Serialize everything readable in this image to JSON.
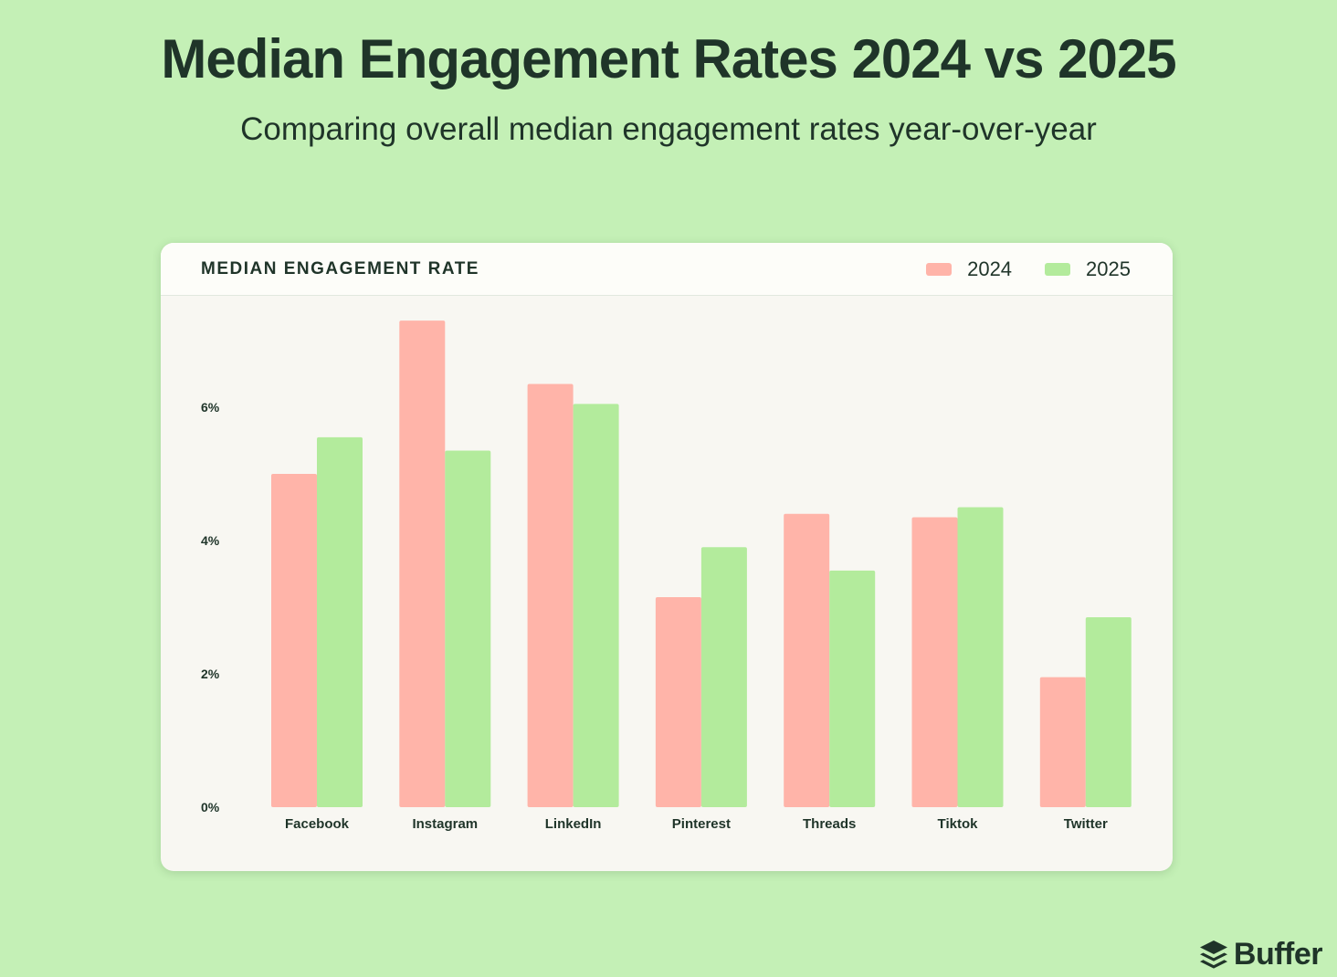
{
  "colors": {
    "background": "#c4f0b6",
    "card": "#f8f7f2",
    "card_header": "#fdfdf9",
    "series_2024": "#ffb4a9",
    "series_2025": "#b3eb9c",
    "text": "#1f3429"
  },
  "header": {
    "title": "Median Engagement Rates 2024 vs 2025",
    "subtitle": "Comparing overall median engagement rates year-over-year"
  },
  "card": {
    "title": "MEDIAN ENGAGEMENT RATE"
  },
  "brand": {
    "name": "Buffer",
    "icon": "buffer-stack-icon"
  },
  "chart_data": {
    "type": "bar",
    "title": "MEDIAN ENGAGEMENT RATE",
    "categories": [
      "Facebook",
      "Instagram",
      "LinkedIn",
      "Pinterest",
      "Threads",
      "Tiktok",
      "Twitter"
    ],
    "series": [
      {
        "name": "2024",
        "values": [
          5.0,
          7.3,
          6.35,
          3.15,
          4.4,
          4.35,
          1.95
        ]
      },
      {
        "name": "2025",
        "values": [
          5.55,
          5.35,
          6.05,
          3.9,
          3.55,
          4.5,
          2.85
        ]
      }
    ],
    "yticks": [
      0,
      2,
      4,
      6
    ],
    "ytick_labels": [
      "0%",
      "2%",
      "4%",
      "6%"
    ],
    "ylim": [
      0,
      7.3
    ],
    "xlabel": "",
    "ylabel": "",
    "legend_position": "top-right",
    "grid": false
  }
}
